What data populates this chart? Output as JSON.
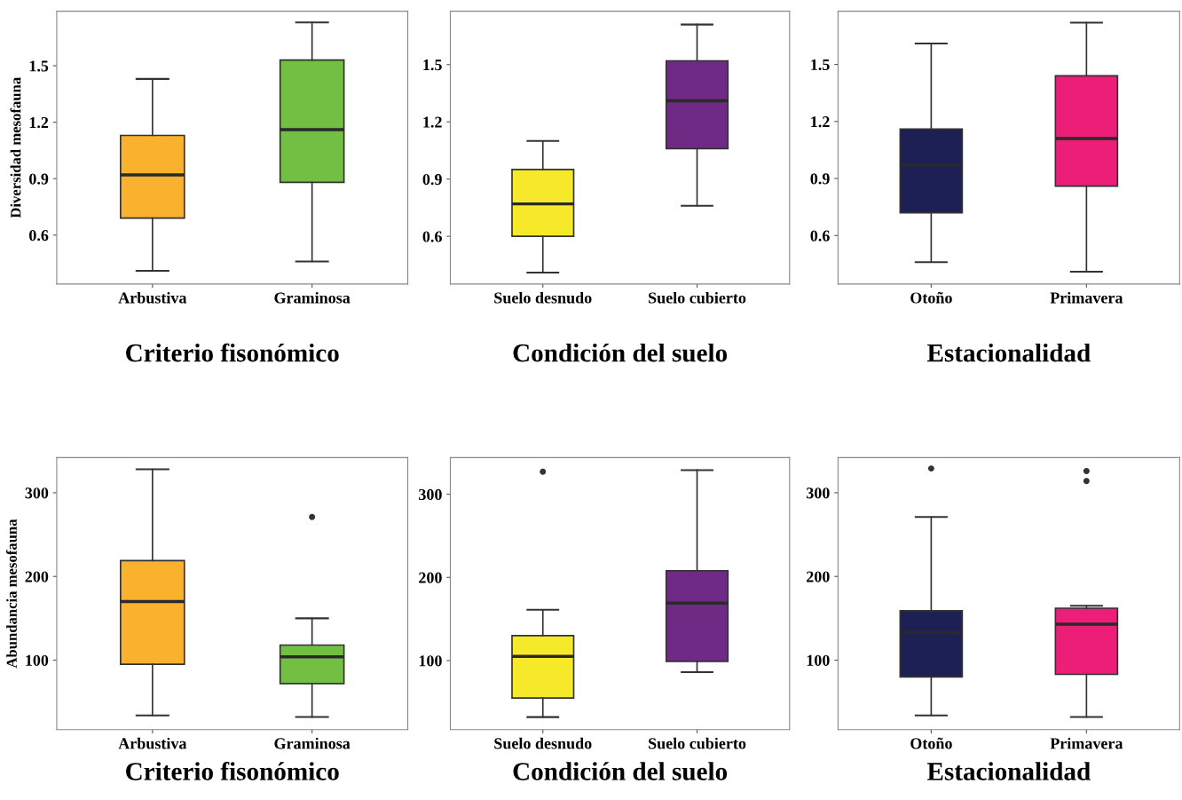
{
  "chart_data": [
    {
      "type": "box",
      "xlabel": "Criterio fisonómico",
      "ylabel": "Diversidad mesofauna",
      "categories": [
        "Arbustiva",
        "Graminosa"
      ],
      "colors": [
        "#f9b12e",
        "#72bf44"
      ],
      "ylim": [
        0.34,
        1.79
      ],
      "yticks": [
        0.6,
        0.9,
        1.2,
        1.5
      ],
      "grid": false,
      "boxes": [
        {
          "low": 0.41,
          "q1": 0.69,
          "median": 0.92,
          "q3": 1.13,
          "high": 1.43
        },
        {
          "low": 0.46,
          "q1": 0.88,
          "median": 1.16,
          "q3": 1.53,
          "high": 1.73
        }
      ]
    },
    {
      "type": "box",
      "xlabel": "Condición del suelo",
      "categories": [
        "Suelo desnudo",
        "Suelo cubierto"
      ],
      "colors": [
        "#f5e92a",
        "#6e2a85"
      ],
      "ylim": [
        0.35,
        1.78
      ],
      "yticks": [
        0.6,
        0.9,
        1.2,
        1.5
      ],
      "grid": false,
      "boxes": [
        {
          "low": 0.41,
          "q1": 0.6,
          "median": 0.77,
          "q3": 0.95,
          "high": 1.1
        },
        {
          "low": 0.76,
          "q1": 1.06,
          "median": 1.31,
          "q3": 1.52,
          "high": 1.71
        }
      ]
    },
    {
      "type": "box",
      "xlabel": "Estacionalidad",
      "categories": [
        "Otoño",
        "Primavera"
      ],
      "colors": [
        "#1d2054",
        "#ec1e78"
      ],
      "ylim": [
        0.345,
        1.78
      ],
      "yticks": [
        0.6,
        0.9,
        1.2,
        1.5
      ],
      "grid": false,
      "boxes": [
        {
          "low": 0.46,
          "q1": 0.72,
          "median": 0.97,
          "q3": 1.16,
          "high": 1.61
        },
        {
          "low": 0.41,
          "q1": 0.86,
          "median": 1.11,
          "q3": 1.44,
          "high": 1.72
        }
      ]
    },
    {
      "type": "box",
      "xlabel": "Criterio fisonómico",
      "ylabel": "Abundancia mesofauna",
      "categories": [
        "Arbustiva",
        "Graminosa"
      ],
      "colors": [
        "#f9b12e",
        "#72bf44"
      ],
      "ylim": [
        17,
        342
      ],
      "yticks": [
        100,
        200,
        300
      ],
      "grid": false,
      "boxes": [
        {
          "low": 34,
          "q1": 95,
          "median": 170,
          "q3": 219,
          "high": 328
        },
        {
          "low": 32,
          "q1": 72,
          "median": 104,
          "q3": 118,
          "high": 150,
          "outliers": [
            271
          ]
        }
      ]
    },
    {
      "type": "box",
      "xlabel": "Condición del suelo",
      "categories": [
        "Suelo desnudo",
        "Suelo cubierto"
      ],
      "colors": [
        "#f5e92a",
        "#6e2a85"
      ],
      "ylim": [
        17,
        344
      ],
      "yticks": [
        100,
        200,
        300
      ],
      "grid": false,
      "boxes": [
        {
          "low": 32,
          "q1": 55,
          "median": 105,
          "q3": 130,
          "high": 161,
          "outliers": [
            327
          ]
        },
        {
          "low": 86,
          "q1": 99,
          "median": 169,
          "q3": 208,
          "high": 329
        }
      ]
    },
    {
      "type": "box",
      "xlabel": "Estacionalidad",
      "categories": [
        "Otoño",
        "Primavera"
      ],
      "colors": [
        "#1d2054",
        "#ec1e78"
      ],
      "ylim": [
        17,
        342
      ],
      "yticks": [
        100,
        200,
        300
      ],
      "grid": false,
      "boxes": [
        {
          "low": 34,
          "q1": 80,
          "median": 133,
          "q3": 159,
          "high": 271,
          "outliers": [
            329
          ]
        },
        {
          "low": 32,
          "q1": 83,
          "median": 143,
          "q3": 162,
          "high": 165,
          "outliers": [
            326,
            314
          ]
        }
      ]
    }
  ]
}
